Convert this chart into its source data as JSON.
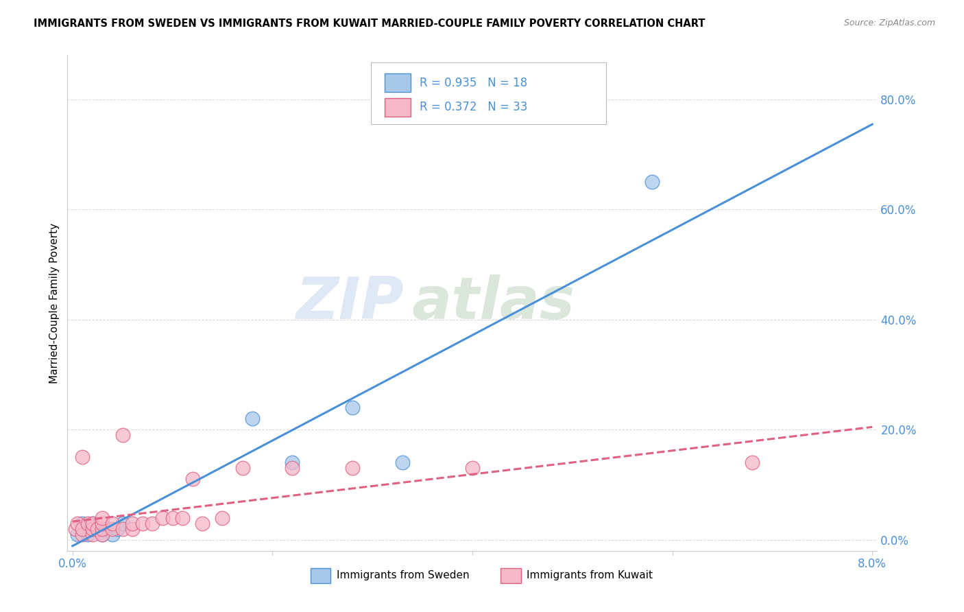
{
  "title": "IMMIGRANTS FROM SWEDEN VS IMMIGRANTS FROM KUWAIT MARRIED-COUPLE FAMILY POVERTY CORRELATION CHART",
  "source": "Source: ZipAtlas.com",
  "ylabel": "Married-Couple Family Poverty",
  "yticks": [
    "0.0%",
    "20.0%",
    "40.0%",
    "60.0%",
    "80.0%"
  ],
  "ytick_vals": [
    0.0,
    0.2,
    0.4,
    0.6,
    0.8
  ],
  "xlim": [
    0.0,
    0.08
  ],
  "ylim": [
    -0.02,
    0.88
  ],
  "sweden_color": "#a8c8ea",
  "sweden_line_color": "#4a90d9",
  "kuwait_color": "#f5b8c8",
  "kuwait_line_color": "#e06080",
  "legend_text_color": "#4a90d9",
  "sweden_R": "0.935",
  "sweden_N": "18",
  "kuwait_R": "0.372",
  "kuwait_N": "33",
  "legend_sweden_label": "Immigrants from Sweden",
  "legend_kuwait_label": "Immigrants from Kuwait",
  "watermark_zip": "ZIP",
  "watermark_atlas": "atlas",
  "sweden_x": [
    0.0005,
    0.001,
    0.001,
    0.0015,
    0.002,
    0.002,
    0.0025,
    0.003,
    0.003,
    0.0035,
    0.004,
    0.0045,
    0.005,
    0.018,
    0.022,
    0.028,
    0.033,
    0.058
  ],
  "sweden_y": [
    0.01,
    0.02,
    0.03,
    0.01,
    0.02,
    0.03,
    0.02,
    0.01,
    0.02,
    0.02,
    0.01,
    0.02,
    0.03,
    0.22,
    0.14,
    0.24,
    0.14,
    0.65
  ],
  "kuwait_x": [
    0.0003,
    0.0005,
    0.001,
    0.001,
    0.001,
    0.0015,
    0.002,
    0.002,
    0.002,
    0.0025,
    0.003,
    0.003,
    0.003,
    0.003,
    0.004,
    0.004,
    0.005,
    0.005,
    0.006,
    0.006,
    0.007,
    0.008,
    0.009,
    0.01,
    0.011,
    0.012,
    0.013,
    0.015,
    0.017,
    0.022,
    0.028,
    0.04,
    0.068
  ],
  "kuwait_y": [
    0.02,
    0.03,
    0.01,
    0.02,
    0.15,
    0.03,
    0.01,
    0.02,
    0.03,
    0.02,
    0.01,
    0.02,
    0.03,
    0.04,
    0.02,
    0.03,
    0.02,
    0.19,
    0.02,
    0.03,
    0.03,
    0.03,
    0.04,
    0.04,
    0.04,
    0.11,
    0.03,
    0.04,
    0.13,
    0.13,
    0.13,
    0.13,
    0.14
  ],
  "grid_color": "#d8d8d8",
  "spine_color": "#cccccc"
}
